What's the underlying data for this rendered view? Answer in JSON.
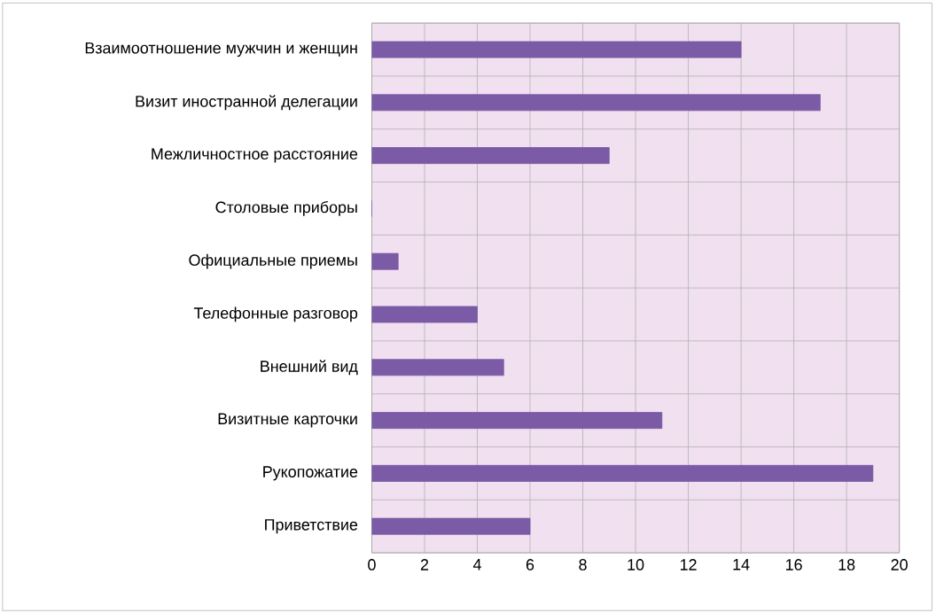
{
  "chart_data": {
    "type": "bar",
    "orientation": "horizontal",
    "categories": [
      "Взаимоотношение мужчин и женщин",
      "Визит иностранной делегации",
      "Межличностное расстояние",
      "Столовые приборы",
      "Официальные приемы",
      "Телефонные разговор",
      "Внешний вид",
      "Визитные карточки",
      "Рукопожатие",
      "Приветствие"
    ],
    "values": [
      14,
      17,
      9,
      0,
      1,
      4,
      5,
      11,
      19,
      6
    ],
    "color": "#7b5aa6",
    "xlim": [
      0,
      20
    ],
    "xticks": [
      0,
      2,
      4,
      6,
      8,
      10,
      12,
      14,
      16,
      18,
      20
    ],
    "grid": true
  }
}
